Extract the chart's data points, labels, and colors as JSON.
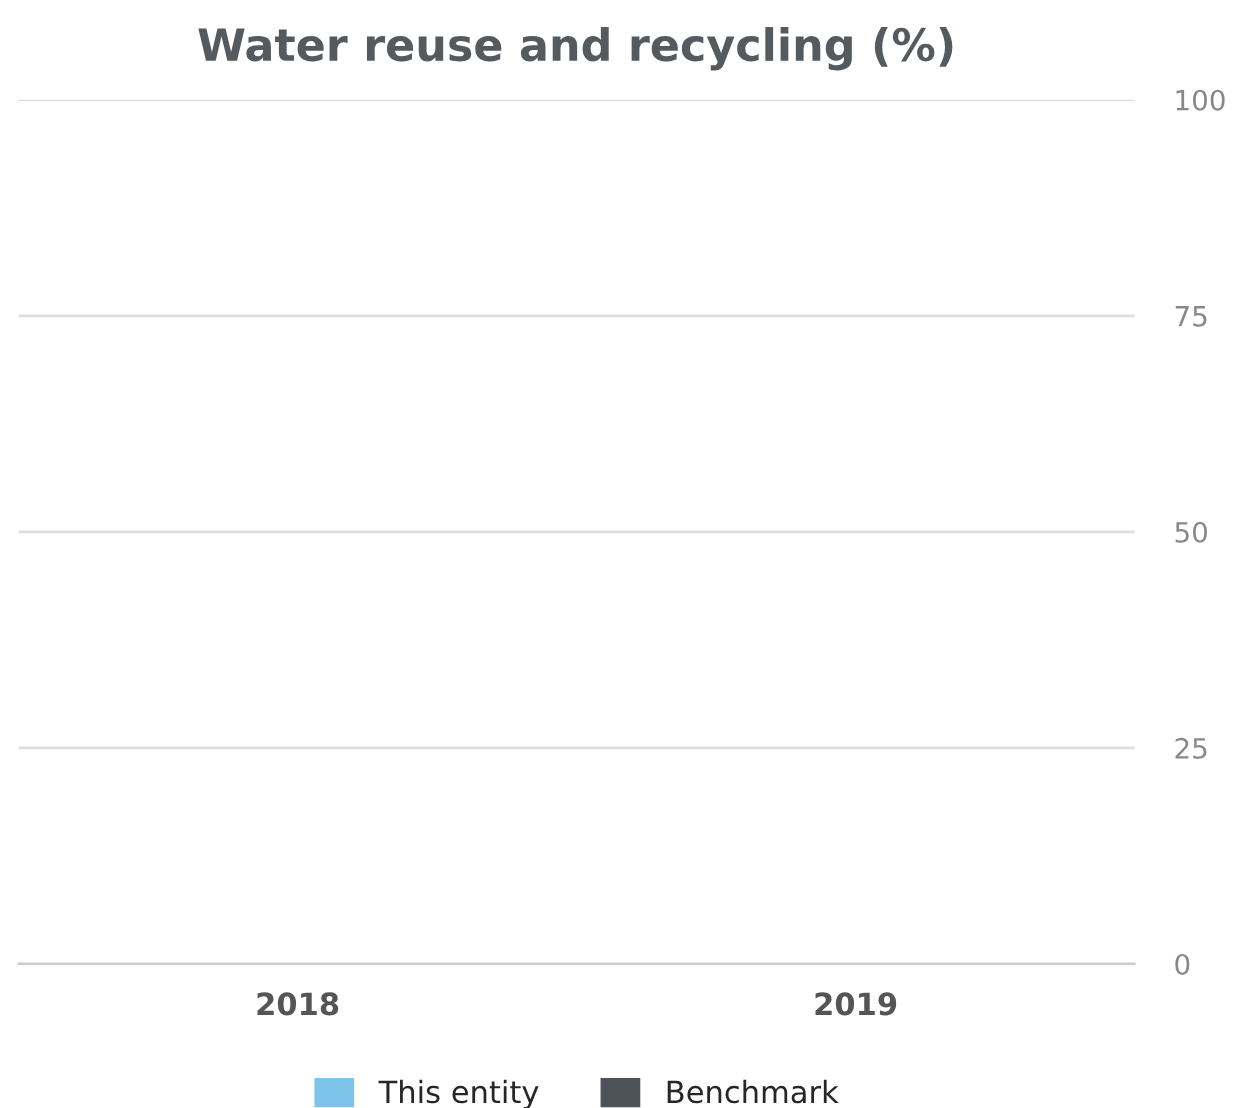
{
  "chart_data": {
    "type": "bar",
    "title": "Water reuse and recycling (%)",
    "categories": [
      "2018",
      "2019"
    ],
    "series": [
      {
        "name": "This entity",
        "color": "#7cc4ea",
        "values": [
          null,
          null
        ]
      },
      {
        "name": "Benchmark",
        "color": "#4d5258",
        "values": [
          null,
          null
        ]
      }
    ],
    "ylim": [
      0,
      100
    ],
    "yticks": [
      0,
      25,
      50,
      75,
      100
    ],
    "grid": "y",
    "legend": "bottom"
  }
}
